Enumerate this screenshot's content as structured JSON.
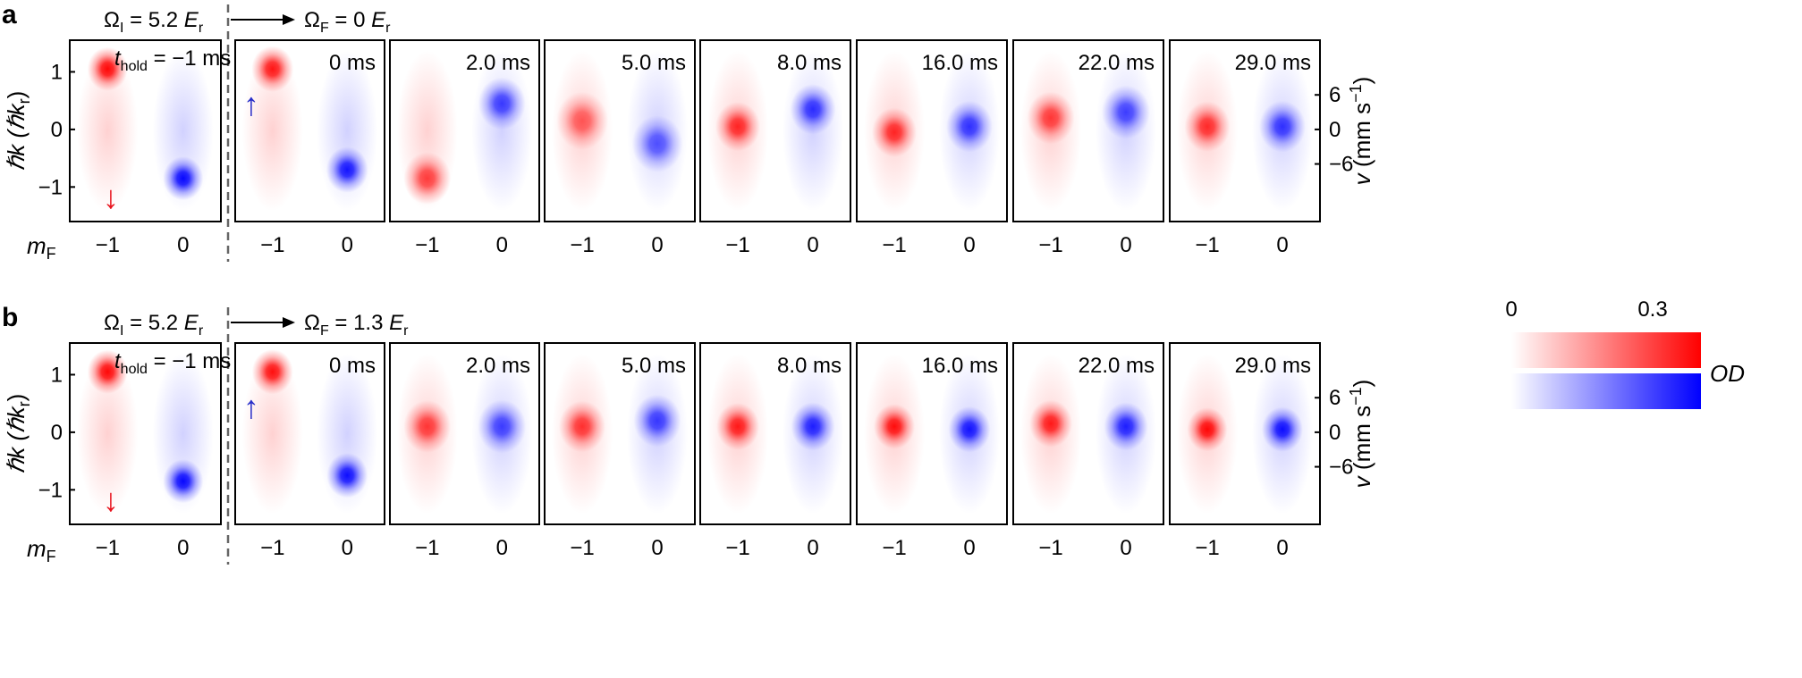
{
  "panels": [
    {
      "letter": "a",
      "omega_i": "Ω",
      "omega_i_sub": "I",
      "omega_i_value": " = 5.2 ",
      "omega_f": "Ω",
      "omega_f_sub": "F",
      "omega_f_value": " = 0 ",
      "unit": "E",
      "unit_sub": "r",
      "times": [
        "0 ms",
        "2.0 ms",
        "5.0 ms",
        "8.0 ms",
        "16.0 ms",
        "22.0 ms",
        "29.0 ms"
      ],
      "clouds": [
        [
          [
            1.05,
            0.85
          ],
          [
            -0.7,
            0.85
          ]
        ],
        [
          [
            -0.85,
            0.55
          ],
          [
            0.45,
            0.55
          ]
        ],
        [
          [
            0.15,
            0.3
          ],
          [
            -0.25,
            0.35
          ]
        ],
        [
          [
            0.05,
            0.7
          ],
          [
            0.35,
            0.65
          ]
        ],
        [
          [
            -0.05,
            0.7
          ],
          [
            0.05,
            0.6
          ]
        ],
        [
          [
            0.2,
            0.55
          ],
          [
            0.3,
            0.5
          ]
        ],
        [
          [
            0.05,
            0.65
          ],
          [
            0.05,
            0.6
          ]
        ]
      ]
    },
    {
      "letter": "b",
      "omega_i": "Ω",
      "omega_i_sub": "I",
      "omega_i_value": " = 5.2 ",
      "omega_f": "Ω",
      "omega_f_sub": "F",
      "omega_f_value": " = 1.3 ",
      "unit": "E",
      "unit_sub": "r",
      "times": [
        "0 ms",
        "2.0 ms",
        "5.0 ms",
        "8.0 ms",
        "16.0 ms",
        "22.0 ms",
        "29.0 ms"
      ],
      "clouds": [
        [
          [
            1.05,
            0.9
          ],
          [
            -0.75,
            0.9
          ]
        ],
        [
          [
            0.1,
            0.55
          ],
          [
            0.1,
            0.5
          ]
        ],
        [
          [
            0.1,
            0.6
          ],
          [
            0.2,
            0.55
          ]
        ],
        [
          [
            0.1,
            0.8
          ],
          [
            0.1,
            0.75
          ]
        ],
        [
          [
            0.1,
            0.9
          ],
          [
            0.05,
            0.85
          ]
        ],
        [
          [
            0.15,
            0.8
          ],
          [
            0.1,
            0.75
          ]
        ],
        [
          [
            0.05,
            0.95
          ],
          [
            0.05,
            0.9
          ]
        ]
      ]
    }
  ],
  "initial_panel": {
    "hold_label": "t",
    "hold_sub": "hold",
    "hold_value": " = −1 ms",
    "up_arrow": "↑",
    "down_arrow": "↓",
    "clouds": [
      [
        1.05,
        0.95
      ],
      [
        -0.85,
        0.95
      ]
    ]
  },
  "axes": {
    "ylabel_left_prefix": "ℏk (ℏk",
    "ylabel_left_sub": "r",
    "ylabel_left_suffix": ")",
    "ylabel_right_prefix": "v",
    "ylabel_right_unit": " (mm s",
    "ylabel_right_sup": "−1",
    "ylabel_right_suffix": ")",
    "y_ticks": [
      "1",
      "0",
      "−1"
    ],
    "v_ticks": [
      "6",
      "0",
      "−6"
    ],
    "x_tick_labels": [
      "−1",
      "0"
    ],
    "mf_label": "m",
    "mf_sub": "F"
  },
  "colorbar": {
    "min_label": "0",
    "max_label": "0.3",
    "od_label": "OD",
    "red": "#ff0000",
    "blue": "#0000ff"
  },
  "colors": {
    "red": "#ff0000",
    "blue": "#0000ff",
    "arrow_red": "#e8141e",
    "arrow_blue": "#1f2fd0"
  }
}
